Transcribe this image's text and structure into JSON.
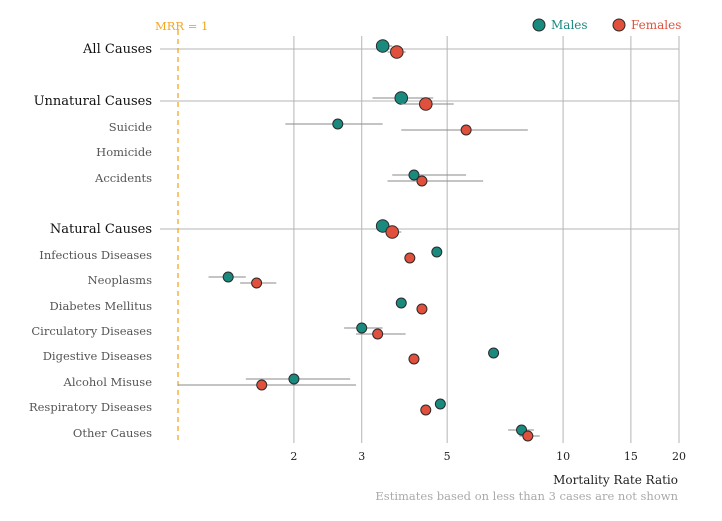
{
  "chart_data": {
    "type": "scatter",
    "xlabel": "Mortality Rate Ratio",
    "x_scale": "log",
    "x_ticks": [
      2,
      3,
      5,
      10,
      15,
      20
    ],
    "reference_line": {
      "value": 1,
      "label": "MRR = 1",
      "color": "#f5a623"
    },
    "note": "Estimates based on less than 3 cases are not shown",
    "grid": true,
    "legend_position": "top-right",
    "series": [
      {
        "name": "Males",
        "color": "#1a8a7e"
      },
      {
        "name": "Females",
        "color": "#e0503c"
      }
    ],
    "categories": [
      {
        "label": "All Causes",
        "level": "top",
        "males": {
          "value": 3.4,
          "low": 3.3,
          "high": 3.6
        },
        "females": {
          "value": 3.7,
          "low": 3.5,
          "high": 3.9
        }
      },
      {
        "label": "Unnatural Causes",
        "level": "top",
        "males": {
          "value": 3.8,
          "low": 3.2,
          "high": 4.6
        },
        "females": {
          "value": 4.4,
          "low": 3.8,
          "high": 5.2
        }
      },
      {
        "label": "Suicide",
        "level": "sub",
        "males": {
          "value": 2.6,
          "low": 1.9,
          "high": 3.4
        },
        "females": {
          "value": 5.6,
          "low": 3.8,
          "high": 8.1
        }
      },
      {
        "label": "Homicide",
        "level": "sub",
        "males": null,
        "females": null
      },
      {
        "label": "Accidents",
        "level": "sub",
        "males": {
          "value": 4.1,
          "low": 3.6,
          "high": 5.6
        },
        "females": {
          "value": 4.3,
          "low": 3.5,
          "high": 6.2
        }
      },
      {
        "label": "Natural Causes",
        "level": "top",
        "males": {
          "value": 3.4,
          "low": 3.3,
          "high": 3.5
        },
        "females": {
          "value": 3.6,
          "low": 3.5,
          "high": 3.8
        }
      },
      {
        "label": "Infectious Diseases",
        "level": "sub",
        "males": {
          "value": 4.7,
          "low": 4.6,
          "high": 4.8
        },
        "females": {
          "value": 4.0,
          "low": 3.9,
          "high": 4.1
        }
      },
      {
        "label": "Neoplasms",
        "level": "sub",
        "males": {
          "value": 1.35,
          "low": 1.2,
          "high": 1.5
        },
        "females": {
          "value": 1.6,
          "low": 1.45,
          "high": 1.8
        }
      },
      {
        "label": "Diabetes Mellitus",
        "level": "sub",
        "males": {
          "value": 3.8,
          "low": 3.7,
          "high": 3.9
        },
        "females": {
          "value": 4.3,
          "low": 4.2,
          "high": 4.4
        }
      },
      {
        "label": "Circulatory Diseases",
        "level": "sub",
        "males": {
          "value": 3.0,
          "low": 2.7,
          "high": 3.4
        },
        "females": {
          "value": 3.3,
          "low": 2.9,
          "high": 3.9
        }
      },
      {
        "label": "Digestive Diseases",
        "level": "sub",
        "males": {
          "value": 6.6,
          "low": 6.4,
          "high": 6.8
        },
        "females": {
          "value": 4.1,
          "low": 4.0,
          "high": 4.2
        }
      },
      {
        "label": "Alcohol Misuse",
        "level": "sub",
        "males": {
          "value": 2.0,
          "low": 1.5,
          "high": 2.8
        },
        "females": {
          "value": 1.65,
          "low": 1.0,
          "high": 2.9
        }
      },
      {
        "label": "Respiratory Diseases",
        "level": "sub",
        "males": {
          "value": 4.8,
          "low": 4.7,
          "high": 4.9
        },
        "females": {
          "value": 4.4,
          "low": 4.3,
          "high": 4.5
        }
      },
      {
        "label": "Other Causes",
        "level": "sub",
        "males": {
          "value": 7.8,
          "low": 7.2,
          "high": 8.4
        },
        "females": {
          "value": 8.1,
          "low": 7.7,
          "high": 8.7
        }
      }
    ]
  }
}
